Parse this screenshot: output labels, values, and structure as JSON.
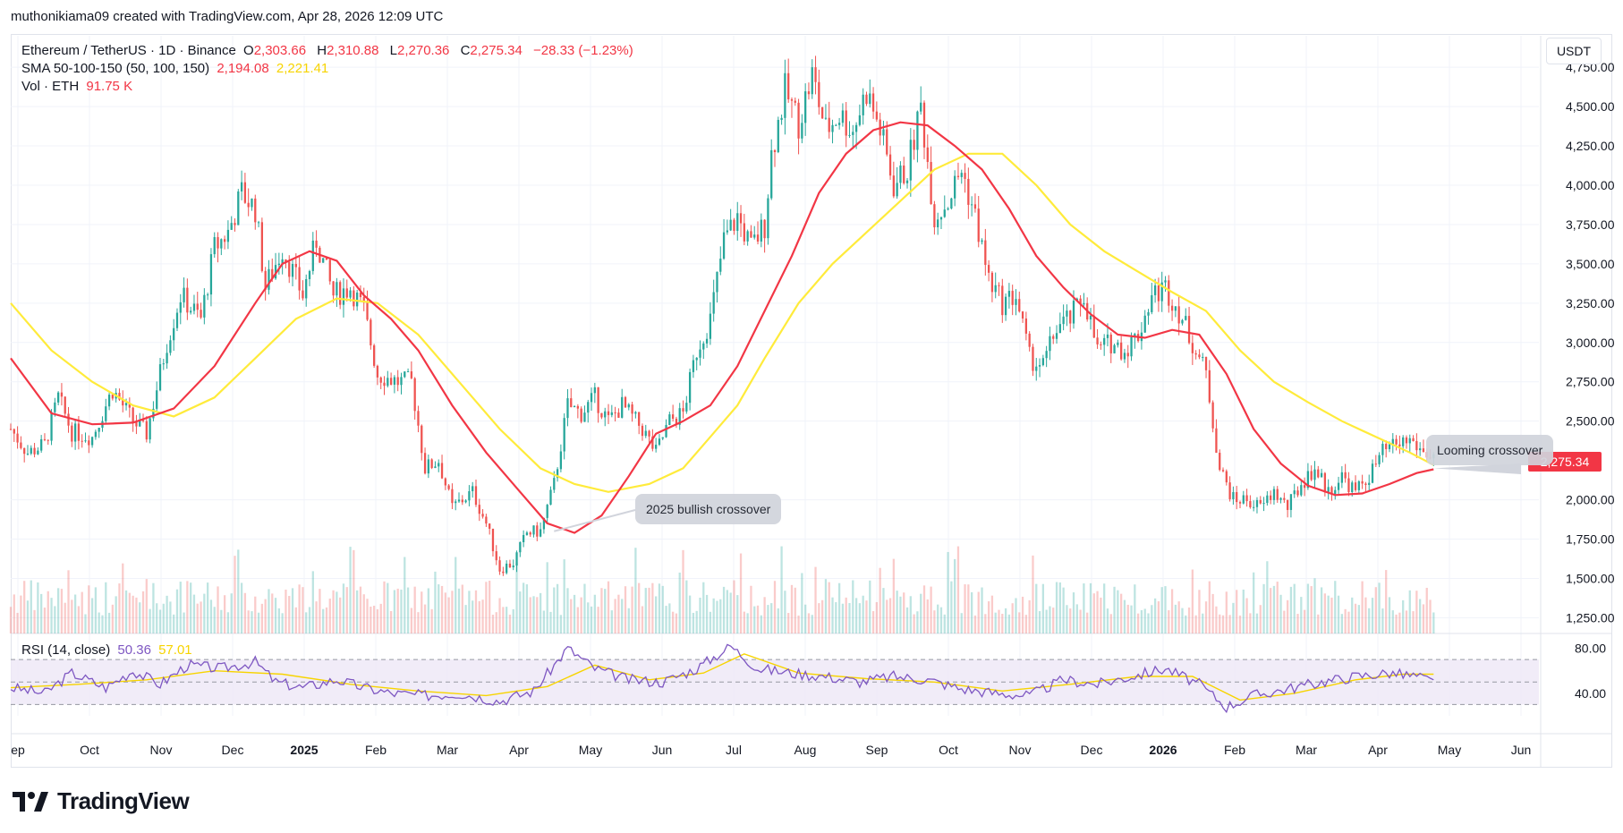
{
  "credit": "muthonikiama09 created with TradingView.com, Apr 28, 2026 12:09 UTC",
  "legend": {
    "symbol": "Ethereum / TetherUS · 1D · Binance",
    "o_label": "O",
    "o": "2,303.66",
    "h_label": "H",
    "h": "2,310.88",
    "l_label": "L",
    "l": "2,270.36",
    "c_label": "C",
    "c": "2,275.34",
    "change": "−28.33 (−1.23%)",
    "sma_label": "SMA 50-100-150 (50, 100, 150)",
    "sma_50": "2,194.08",
    "sma_100": "2,221.41",
    "vol_label": "Vol · ETH",
    "vol": "91.75 K",
    "rsi_label": "RSI (14, close)",
    "rsi": "50.36",
    "rsi_ma": "57.01"
  },
  "currency": "USDT",
  "last_price_label": "2,275.34",
  "annotations": {
    "bullish": "2025 bullish crossover",
    "looming": "Looming crossover"
  },
  "logo_text": "TradingView",
  "colors": {
    "up": "#26a69a",
    "down": "#ef5350",
    "sma50": "#f23645",
    "sma100": "#ffeb3b",
    "rsi": "#7e57c2",
    "rsi_ma": "#f7d400",
    "rsi_band": "#ede7f6"
  },
  "chart_data": {
    "type": "candlestick",
    "title": "Ethereum / TetherUS · 1D · Binance",
    "x_axis_labels": [
      "ep",
      "Oct",
      "Nov",
      "Dec",
      "2025",
      "Feb",
      "Mar",
      "Apr",
      "May",
      "Jun",
      "Jul",
      "Aug",
      "Sep",
      "Oct",
      "Nov",
      "Dec",
      "2026",
      "Feb",
      "Mar",
      "Apr",
      "May",
      "Jun"
    ],
    "y_axis_labels": [
      "4,750.00",
      "4,500.00",
      "4,250.00",
      "4,000.00",
      "3,750.00",
      "3,500.00",
      "3,250.00",
      "3,000.00",
      "2,750.00",
      "2,500.00",
      "2,000.00",
      "1,750.00",
      "1,500.00",
      "1,250.00"
    ],
    "ylim": [
      1150,
      4950
    ],
    "rsi_axis_labels": [
      "80.00",
      "40.00"
    ],
    "rsi_levels": {
      "upper": 70,
      "middle": 50,
      "lower": 30
    },
    "rsi_ylim": [
      20,
      90
    ],
    "price_path": [
      {
        "x": 0,
        "y": 2450
      },
      {
        "x": 5,
        "y": 2300
      },
      {
        "x": 10,
        "y": 2350
      },
      {
        "x": 14,
        "y": 2650
      },
      {
        "x": 18,
        "y": 2430
      },
      {
        "x": 24,
        "y": 2400
      },
      {
        "x": 30,
        "y": 2700
      },
      {
        "x": 36,
        "y": 2500
      },
      {
        "x": 40,
        "y": 2420
      },
      {
        "x": 46,
        "y": 3000
      },
      {
        "x": 50,
        "y": 3300
      },
      {
        "x": 56,
        "y": 3150
      },
      {
        "x": 60,
        "y": 3600
      },
      {
        "x": 64,
        "y": 3700
      },
      {
        "x": 68,
        "y": 3950
      },
      {
        "x": 72,
        "y": 3850
      },
      {
        "x": 75,
        "y": 3350
      },
      {
        "x": 80,
        "y": 3600
      },
      {
        "x": 86,
        "y": 3300
      },
      {
        "x": 90,
        "y": 3650
      },
      {
        "x": 95,
        "y": 3300
      },
      {
        "x": 100,
        "y": 3350
      },
      {
        "x": 104,
        "y": 3200
      },
      {
        "x": 108,
        "y": 2800
      },
      {
        "x": 114,
        "y": 2750
      },
      {
        "x": 118,
        "y": 2750
      },
      {
        "x": 122,
        "y": 2200
      },
      {
        "x": 126,
        "y": 2250
      },
      {
        "x": 130,
        "y": 1950
      },
      {
        "x": 136,
        "y": 2050
      },
      {
        "x": 140,
        "y": 1850
      },
      {
        "x": 144,
        "y": 1560
      },
      {
        "x": 148,
        "y": 1600
      },
      {
        "x": 152,
        "y": 1790
      },
      {
        "x": 156,
        "y": 1800
      },
      {
        "x": 160,
        "y": 2100
      },
      {
        "x": 164,
        "y": 2600
      },
      {
        "x": 168,
        "y": 2550
      },
      {
        "x": 172,
        "y": 2650
      },
      {
        "x": 176,
        "y": 2500
      },
      {
        "x": 180,
        "y": 2600
      },
      {
        "x": 186,
        "y": 2450
      },
      {
        "x": 190,
        "y": 2300
      },
      {
        "x": 194,
        "y": 2500
      },
      {
        "x": 198,
        "y": 2550
      },
      {
        "x": 202,
        "y": 2950
      },
      {
        "x": 206,
        "y": 3150
      },
      {
        "x": 210,
        "y": 3650
      },
      {
        "x": 214,
        "y": 3800
      },
      {
        "x": 218,
        "y": 3600
      },
      {
        "x": 222,
        "y": 3750
      },
      {
        "x": 224,
        "y": 4200
      },
      {
        "x": 228,
        "y": 4600
      },
      {
        "x": 232,
        "y": 4400
      },
      {
        "x": 236,
        "y": 4700
      },
      {
        "x": 240,
        "y": 4350
      },
      {
        "x": 244,
        "y": 4450
      },
      {
        "x": 248,
        "y": 4350
      },
      {
        "x": 252,
        "y": 4600
      },
      {
        "x": 256,
        "y": 4350
      },
      {
        "x": 260,
        "y": 4000
      },
      {
        "x": 264,
        "y": 4100
      },
      {
        "x": 268,
        "y": 4500
      },
      {
        "x": 272,
        "y": 3800
      },
      {
        "x": 276,
        "y": 3900
      },
      {
        "x": 280,
        "y": 4100
      },
      {
        "x": 284,
        "y": 3800
      },
      {
        "x": 288,
        "y": 3400
      },
      {
        "x": 292,
        "y": 3250
      },
      {
        "x": 296,
        "y": 3300
      },
      {
        "x": 300,
        "y": 2900
      },
      {
        "x": 304,
        "y": 2850
      },
      {
        "x": 308,
        "y": 3100
      },
      {
        "x": 312,
        "y": 3150
      },
      {
        "x": 316,
        "y": 3300
      },
      {
        "x": 320,
        "y": 2950
      },
      {
        "x": 324,
        "y": 3000
      },
      {
        "x": 328,
        "y": 2950
      },
      {
        "x": 332,
        "y": 3050
      },
      {
        "x": 336,
        "y": 3300
      },
      {
        "x": 340,
        "y": 3350
      },
      {
        "x": 344,
        "y": 3200
      },
      {
        "x": 348,
        "y": 3000
      },
      {
        "x": 352,
        "y": 2800
      },
      {
        "x": 356,
        "y": 2200
      },
      {
        "x": 360,
        "y": 2000
      },
      {
        "x": 364,
        "y": 2000
      },
      {
        "x": 368,
        "y": 1950
      },
      {
        "x": 372,
        "y": 2050
      },
      {
        "x": 376,
        "y": 1950
      },
      {
        "x": 380,
        "y": 2100
      },
      {
        "x": 384,
        "y": 2200
      },
      {
        "x": 388,
        "y": 2050
      },
      {
        "x": 392,
        "y": 2150
      },
      {
        "x": 396,
        "y": 2050
      },
      {
        "x": 400,
        "y": 2150
      },
      {
        "x": 404,
        "y": 2300
      },
      {
        "x": 408,
        "y": 2350
      },
      {
        "x": 412,
        "y": 2380
      },
      {
        "x": 416,
        "y": 2300
      },
      {
        "x": 419,
        "y": 2275
      }
    ],
    "sma_50_path": [
      {
        "x": 0,
        "y": 2900
      },
      {
        "x": 12,
        "y": 2550
      },
      {
        "x": 24,
        "y": 2480
      },
      {
        "x": 36,
        "y": 2490
      },
      {
        "x": 48,
        "y": 2580
      },
      {
        "x": 60,
        "y": 2850
      },
      {
        "x": 72,
        "y": 3250
      },
      {
        "x": 80,
        "y": 3500
      },
      {
        "x": 88,
        "y": 3580
      },
      {
        "x": 96,
        "y": 3520
      },
      {
        "x": 104,
        "y": 3300
      },
      {
        "x": 112,
        "y": 3150
      },
      {
        "x": 120,
        "y": 2950
      },
      {
        "x": 130,
        "y": 2600
      },
      {
        "x": 140,
        "y": 2300
      },
      {
        "x": 150,
        "y": 2050
      },
      {
        "x": 158,
        "y": 1850
      },
      {
        "x": 166,
        "y": 1790
      },
      {
        "x": 174,
        "y": 1900
      },
      {
        "x": 182,
        "y": 2150
      },
      {
        "x": 190,
        "y": 2420
      },
      {
        "x": 198,
        "y": 2500
      },
      {
        "x": 206,
        "y": 2600
      },
      {
        "x": 214,
        "y": 2850
      },
      {
        "x": 222,
        "y": 3200
      },
      {
        "x": 230,
        "y": 3550
      },
      {
        "x": 238,
        "y": 3950
      },
      {
        "x": 246,
        "y": 4200
      },
      {
        "x": 254,
        "y": 4350
      },
      {
        "x": 262,
        "y": 4400
      },
      {
        "x": 270,
        "y": 4380
      },
      {
        "x": 278,
        "y": 4250
      },
      {
        "x": 286,
        "y": 4100
      },
      {
        "x": 294,
        "y": 3850
      },
      {
        "x": 302,
        "y": 3550
      },
      {
        "x": 310,
        "y": 3350
      },
      {
        "x": 318,
        "y": 3180
      },
      {
        "x": 326,
        "y": 3050
      },
      {
        "x": 334,
        "y": 3030
      },
      {
        "x": 342,
        "y": 3080
      },
      {
        "x": 350,
        "y": 3050
      },
      {
        "x": 358,
        "y": 2800
      },
      {
        "x": 366,
        "y": 2450
      },
      {
        "x": 374,
        "y": 2230
      },
      {
        "x": 382,
        "y": 2090
      },
      {
        "x": 390,
        "y": 2030
      },
      {
        "x": 398,
        "y": 2040
      },
      {
        "x": 406,
        "y": 2100
      },
      {
        "x": 414,
        "y": 2170
      },
      {
        "x": 419,
        "y": 2194
      }
    ],
    "sma_100_path": [
      {
        "x": 0,
        "y": 3250
      },
      {
        "x": 12,
        "y": 2950
      },
      {
        "x": 24,
        "y": 2750
      },
      {
        "x": 36,
        "y": 2600
      },
      {
        "x": 48,
        "y": 2530
      },
      {
        "x": 60,
        "y": 2650
      },
      {
        "x": 72,
        "y": 2900
      },
      {
        "x": 84,
        "y": 3150
      },
      {
        "x": 96,
        "y": 3280
      },
      {
        "x": 108,
        "y": 3250
      },
      {
        "x": 120,
        "y": 3050
      },
      {
        "x": 132,
        "y": 2750
      },
      {
        "x": 144,
        "y": 2450
      },
      {
        "x": 156,
        "y": 2200
      },
      {
        "x": 166,
        "y": 2100
      },
      {
        "x": 176,
        "y": 2050
      },
      {
        "x": 188,
        "y": 2100
      },
      {
        "x": 198,
        "y": 2200
      },
      {
        "x": 206,
        "y": 2400
      },
      {
        "x": 214,
        "y": 2600
      },
      {
        "x": 222,
        "y": 2900
      },
      {
        "x": 232,
        "y": 3250
      },
      {
        "x": 242,
        "y": 3500
      },
      {
        "x": 252,
        "y": 3700
      },
      {
        "x": 262,
        "y": 3900
      },
      {
        "x": 272,
        "y": 4100
      },
      {
        "x": 282,
        "y": 4200
      },
      {
        "x": 292,
        "y": 4200
      },
      {
        "x": 302,
        "y": 4000
      },
      {
        "x": 312,
        "y": 3750
      },
      {
        "x": 322,
        "y": 3580
      },
      {
        "x": 332,
        "y": 3450
      },
      {
        "x": 342,
        "y": 3320
      },
      {
        "x": 352,
        "y": 3200
      },
      {
        "x": 362,
        "y": 2950
      },
      {
        "x": 372,
        "y": 2750
      },
      {
        "x": 382,
        "y": 2620
      },
      {
        "x": 392,
        "y": 2500
      },
      {
        "x": 402,
        "y": 2400
      },
      {
        "x": 412,
        "y": 2300
      },
      {
        "x": 419,
        "y": 2221
      }
    ],
    "rsi_path": [
      {
        "x": 0,
        "y": 45
      },
      {
        "x": 10,
        "y": 40
      },
      {
        "x": 18,
        "y": 58
      },
      {
        "x": 28,
        "y": 45
      },
      {
        "x": 36,
        "y": 60
      },
      {
        "x": 44,
        "y": 48
      },
      {
        "x": 52,
        "y": 65
      },
      {
        "x": 62,
        "y": 62
      },
      {
        "x": 72,
        "y": 68
      },
      {
        "x": 78,
        "y": 50
      },
      {
        "x": 86,
        "y": 45
      },
      {
        "x": 96,
        "y": 52
      },
      {
        "x": 104,
        "y": 45
      },
      {
        "x": 112,
        "y": 40
      },
      {
        "x": 122,
        "y": 38
      },
      {
        "x": 132,
        "y": 40
      },
      {
        "x": 144,
        "y": 33
      },
      {
        "x": 154,
        "y": 42
      },
      {
        "x": 164,
        "y": 80
      },
      {
        "x": 172,
        "y": 62
      },
      {
        "x": 182,
        "y": 52
      },
      {
        "x": 192,
        "y": 50
      },
      {
        "x": 202,
        "y": 62
      },
      {
        "x": 212,
        "y": 82
      },
      {
        "x": 220,
        "y": 62
      },
      {
        "x": 230,
        "y": 58
      },
      {
        "x": 240,
        "y": 55
      },
      {
        "x": 250,
        "y": 50
      },
      {
        "x": 260,
        "y": 55
      },
      {
        "x": 270,
        "y": 52
      },
      {
        "x": 280,
        "y": 44
      },
      {
        "x": 290,
        "y": 40
      },
      {
        "x": 300,
        "y": 38
      },
      {
        "x": 310,
        "y": 52
      },
      {
        "x": 320,
        "y": 48
      },
      {
        "x": 330,
        "y": 55
      },
      {
        "x": 340,
        "y": 62
      },
      {
        "x": 350,
        "y": 48
      },
      {
        "x": 358,
        "y": 28
      },
      {
        "x": 366,
        "y": 38
      },
      {
        "x": 376,
        "y": 44
      },
      {
        "x": 386,
        "y": 50
      },
      {
        "x": 396,
        "y": 55
      },
      {
        "x": 406,
        "y": 58
      },
      {
        "x": 414,
        "y": 55
      },
      {
        "x": 419,
        "y": 50
      }
    ],
    "rsi_ma_path": [
      {
        "x": 0,
        "y": 45
      },
      {
        "x": 20,
        "y": 48
      },
      {
        "x": 40,
        "y": 52
      },
      {
        "x": 60,
        "y": 60
      },
      {
        "x": 80,
        "y": 57
      },
      {
        "x": 100,
        "y": 48
      },
      {
        "x": 120,
        "y": 42
      },
      {
        "x": 140,
        "y": 38
      },
      {
        "x": 158,
        "y": 46
      },
      {
        "x": 172,
        "y": 65
      },
      {
        "x": 188,
        "y": 52
      },
      {
        "x": 204,
        "y": 58
      },
      {
        "x": 216,
        "y": 75
      },
      {
        "x": 232,
        "y": 58
      },
      {
        "x": 252,
        "y": 53
      },
      {
        "x": 272,
        "y": 50
      },
      {
        "x": 292,
        "y": 42
      },
      {
        "x": 312,
        "y": 48
      },
      {
        "x": 332,
        "y": 55
      },
      {
        "x": 348,
        "y": 55
      },
      {
        "x": 362,
        "y": 34
      },
      {
        "x": 378,
        "y": 40
      },
      {
        "x": 396,
        "y": 52
      },
      {
        "x": 410,
        "y": 57
      },
      {
        "x": 419,
        "y": 57
      }
    ],
    "x_range": [
      0,
      450
    ]
  }
}
